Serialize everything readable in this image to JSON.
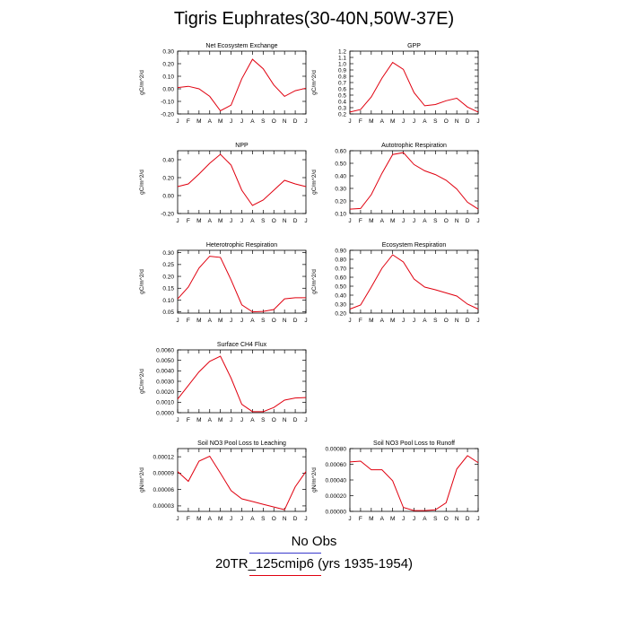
{
  "title": "Tigris Euphrates(30-40N,50W-37E)",
  "months": [
    "J",
    "F",
    "M",
    "A",
    "M",
    "J",
    "J",
    "A",
    "S",
    "O",
    "N",
    "D",
    "J"
  ],
  "colors": {
    "line": "#e0000f",
    "axis": "#000000",
    "obs_line": "#3a3acc"
  },
  "legend": {
    "obs_label": "No Obs",
    "model_label": "20TR_125cmip6 (yrs 1935-1954)"
  },
  "chart_data": [
    {
      "type": "line",
      "title": "Net Ecosystem Exchange",
      "ylabel": "gC/m^2/d",
      "ylim": [
        -0.2,
        0.3
      ],
      "yticks": [
        "-0.20",
        "-0.10",
        "0.00",
        "0.10",
        "0.20",
        "0.30"
      ],
      "ytick_values": [
        -0.2,
        -0.1,
        0.0,
        0.1,
        0.2,
        0.3
      ],
      "values": [
        0.01,
        0.02,
        0.0,
        -0.06,
        -0.175,
        -0.13,
        0.08,
        0.235,
        0.16,
        0.03,
        -0.06,
        -0.015,
        0.005
      ]
    },
    {
      "type": "line",
      "title": "GPP",
      "ylabel": "gC/m^2/d",
      "ylim": [
        0.2,
        1.2
      ],
      "yticks": [
        "0.2",
        "0.3",
        "0.4",
        "0.5",
        "0.6",
        "0.7",
        "0.8",
        "0.9",
        "1.0",
        "1.1",
        "1.2"
      ],
      "ytick_values": [
        0.2,
        0.3,
        0.4,
        0.5,
        0.6,
        0.7,
        0.8,
        0.9,
        1.0,
        1.1,
        1.2
      ],
      "values": [
        0.23,
        0.27,
        0.47,
        0.77,
        1.02,
        0.91,
        0.54,
        0.33,
        0.35,
        0.41,
        0.45,
        0.31,
        0.23
      ]
    },
    {
      "type": "line",
      "title": "NPP",
      "ylabel": "gC/m^2/d",
      "ylim": [
        -0.2,
        0.5
      ],
      "yticks": [
        "-0.20",
        "0.00",
        "0.20",
        "0.40"
      ],
      "ytick_values": [
        -0.2,
        0.0,
        0.2,
        0.4
      ],
      "values": [
        0.1,
        0.13,
        0.24,
        0.36,
        0.46,
        0.34,
        0.06,
        -0.11,
        -0.05,
        0.06,
        0.17,
        0.13,
        0.1
      ]
    },
    {
      "type": "line",
      "title": "Autotrophic Respiration",
      "ylabel": "gC/m^2/d",
      "ylim": [
        0.1,
        0.6
      ],
      "yticks": [
        "0.10",
        "0.20",
        "0.30",
        "0.40",
        "0.50",
        "0.60"
      ],
      "ytick_values": [
        0.1,
        0.2,
        0.3,
        0.4,
        0.5,
        0.6
      ],
      "values": [
        0.135,
        0.14,
        0.25,
        0.42,
        0.57,
        0.585,
        0.49,
        0.44,
        0.41,
        0.365,
        0.295,
        0.19,
        0.135
      ]
    },
    {
      "type": "line",
      "title": "Heterotrophic Respiration",
      "ylabel": "gC/m^2/d",
      "ylim": [
        0.045,
        0.31
      ],
      "yticks": [
        "0.05",
        "0.10",
        "0.15",
        "0.20",
        "0.25",
        "0.30"
      ],
      "ytick_values": [
        0.05,
        0.1,
        0.15,
        0.2,
        0.25,
        0.3
      ],
      "values": [
        0.105,
        0.155,
        0.235,
        0.285,
        0.28,
        0.185,
        0.08,
        0.05,
        0.052,
        0.06,
        0.105,
        0.11,
        0.11
      ]
    },
    {
      "type": "line",
      "title": "Ecosystem Respiration",
      "ylabel": "gC/m^2/d",
      "ylim": [
        0.2,
        0.9
      ],
      "yticks": [
        "0.20",
        "0.30",
        "0.40",
        "0.50",
        "0.60",
        "0.70",
        "0.80",
        "0.90"
      ],
      "ytick_values": [
        0.2,
        0.3,
        0.4,
        0.5,
        0.6,
        0.7,
        0.8,
        0.9
      ],
      "values": [
        0.245,
        0.29,
        0.49,
        0.7,
        0.85,
        0.77,
        0.58,
        0.49,
        0.46,
        0.425,
        0.39,
        0.3,
        0.245
      ]
    },
    {
      "type": "line",
      "title": "Surface CH4 Flux",
      "ylabel": "gC/m^2/d",
      "ylim": [
        0.0,
        0.006
      ],
      "yticks": [
        "0.0000",
        "0.0010",
        "0.0020",
        "0.0030",
        "0.0040",
        "0.0050",
        "0.0060"
      ],
      "ytick_values": [
        0.0,
        0.001,
        0.002,
        0.003,
        0.004,
        0.005,
        0.006
      ],
      "values": [
        0.0013,
        0.0026,
        0.0039,
        0.0049,
        0.0054,
        0.0033,
        0.0008,
        0.0001,
        0.0001,
        0.0005,
        0.0012,
        0.0014,
        0.00145
      ]
    },
    {
      "type": "line",
      "title": "Soil NO3 Pool Loss to Leaching",
      "ylabel": "gN/m^2/d",
      "ylim": [
        2e-05,
        0.000135
      ],
      "yticks": [
        "0.00003",
        "0.00006",
        "0.00009",
        "0.00012"
      ],
      "ytick_values": [
        3e-05,
        6e-05,
        9e-05,
        0.00012
      ],
      "values": [
        9.3e-05,
        7.5e-05,
        0.000112,
        0.000121,
        9e-05,
        5.8e-05,
        4.3e-05,
        3.8e-05,
        3.3e-05,
        2.8e-05,
        2.3e-05,
        6.5e-05,
        9.3e-05
      ]
    },
    {
      "type": "line",
      "title": "Soil NO3 Pool Loss to Runoff",
      "ylabel": "gN/m^2/d",
      "ylim": [
        0.0,
        0.0008
      ],
      "yticks": [
        "0.00000",
        "0.00020",
        "0.00040",
        "0.00060",
        "0.00080"
      ],
      "ytick_values": [
        0.0,
        0.0002,
        0.0004,
        0.0006,
        0.0008
      ],
      "values": [
        0.00063,
        0.00064,
        0.00053,
        0.00053,
        0.00039,
        5e-05,
        1e-05,
        1e-05,
        2e-05,
        0.00011,
        0.00054,
        0.00071,
        0.00062
      ]
    }
  ]
}
